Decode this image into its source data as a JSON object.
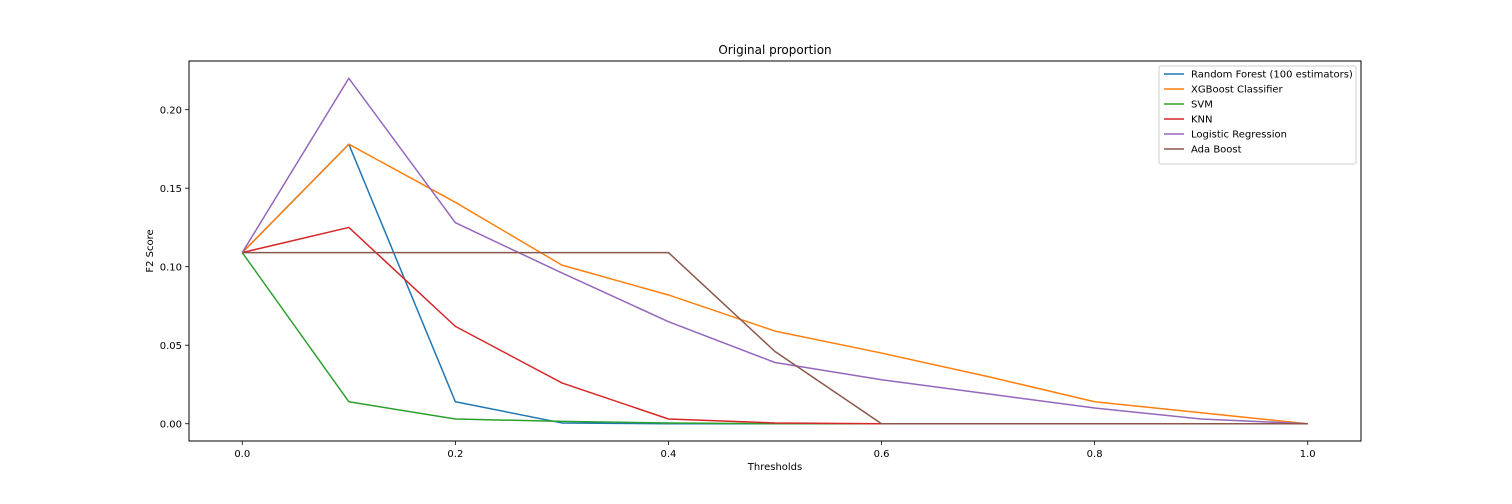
{
  "chart_data": {
    "type": "line",
    "title": "Original proportion",
    "xlabel": "Thresholds",
    "ylabel": "F2 Score",
    "xlim": [
      -0.05,
      1.05
    ],
    "ylim": [
      -0.011,
      0.231
    ],
    "xticks": [
      0.0,
      0.2,
      0.4,
      0.6,
      0.8,
      1.0
    ],
    "xtick_labels": [
      "0.0",
      "0.2",
      "0.4",
      "0.6",
      "0.8",
      "1.0"
    ],
    "yticks": [
      0.0,
      0.05,
      0.1,
      0.15,
      0.2
    ],
    "ytick_labels": [
      "0.00",
      "0.05",
      "0.10",
      "0.15",
      "0.20"
    ],
    "grid": false,
    "legend_position": "top-right",
    "x": [
      0.0,
      0.1,
      0.2,
      0.3,
      0.4,
      0.5,
      0.6,
      0.7,
      0.8,
      0.9,
      1.0
    ],
    "series": [
      {
        "name": "Random Forest (100 estimators)",
        "color": "#1f77b4",
        "values": [
          0.109,
          0.178,
          0.014,
          0.0005,
          0.0,
          0.0,
          0.0,
          0.0,
          0.0,
          0.0,
          0.0
        ]
      },
      {
        "name": "XGBoost Classifier",
        "color": "#ff7f0e",
        "values": [
          0.109,
          0.178,
          0.141,
          0.101,
          0.082,
          0.059,
          0.045,
          0.03,
          0.014,
          0.007,
          0.0
        ]
      },
      {
        "name": "SVM",
        "color": "#2ca02c",
        "values": [
          0.109,
          0.014,
          0.003,
          0.0015,
          0.0005,
          0.0,
          0.0,
          0.0,
          0.0,
          0.0,
          0.0
        ]
      },
      {
        "name": "KNN",
        "color": "#d62728",
        "values": [
          0.109,
          0.125,
          0.062,
          0.026,
          0.003,
          0.0005,
          0.0,
          0.0,
          0.0,
          0.0,
          0.0
        ]
      },
      {
        "name": "Logistic Regression",
        "color": "#9467bd",
        "values": [
          0.109,
          0.22,
          0.128,
          0.096,
          0.065,
          0.039,
          0.028,
          0.019,
          0.01,
          0.003,
          0.0
        ]
      },
      {
        "name": "Ada Boost",
        "color": "#8c564b",
        "values": [
          0.109,
          0.109,
          0.109,
          0.109,
          0.109,
          0.046,
          0.0,
          0.0,
          0.0,
          0.0,
          0.0
        ]
      }
    ]
  }
}
